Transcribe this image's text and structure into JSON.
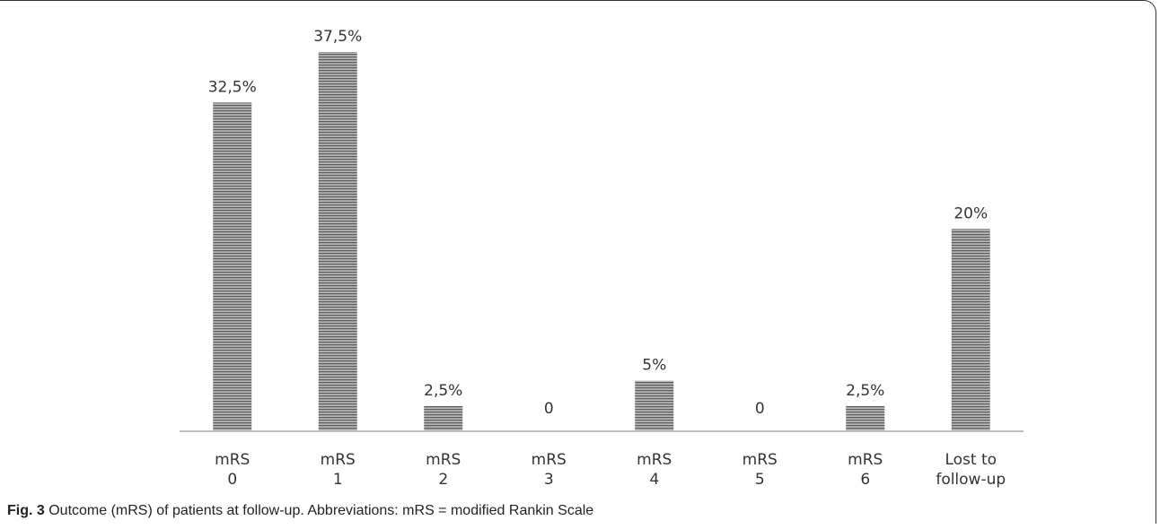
{
  "chart_data": {
    "type": "bar",
    "categories": [
      [
        "mRS",
        "0"
      ],
      [
        "mRS",
        "1"
      ],
      [
        "mRS",
        "2"
      ],
      [
        "mRS",
        "3"
      ],
      [
        "mRS",
        "4"
      ],
      [
        "mRS",
        "5"
      ],
      [
        "mRS",
        "6"
      ],
      [
        "Lost to",
        "follow-up"
      ]
    ],
    "values": [
      32.5,
      37.5,
      2.5,
      0,
      5,
      0,
      2.5,
      20
    ],
    "data_labels": [
      "32,5%",
      "37,5%",
      "2,5%",
      "0",
      "5%",
      "0",
      "2,5%",
      "20%"
    ],
    "ylim": [
      0,
      37.5
    ],
    "grid": false,
    "bar_color": "#7a7a7a"
  },
  "caption": {
    "label": "Fig. 3",
    "text": " Outcome (mRS) of patients at follow-up. Abbreviations: mRS = modified Rankin Scale"
  }
}
